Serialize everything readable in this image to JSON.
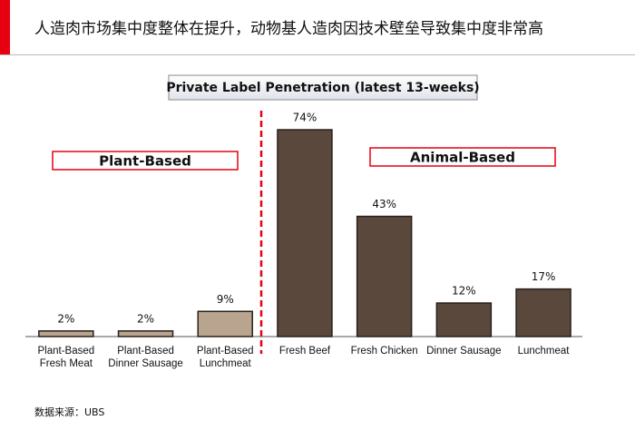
{
  "header": {
    "title": "人造肉市场集中度整体在提升，动物基人造肉因技术壁垒导致集中度非常高"
  },
  "chart_data": {
    "type": "bar",
    "title": "Private Label Penetration (latest 13-weeks)",
    "categories": [
      "Plant-Based Fresh Meat",
      "Plant-Based Dinner Sausage",
      "Plant-Based Lunchmeat",
      "Fresh Beef",
      "Fresh Chicken",
      "Dinner Sausage",
      "Lunchmeat"
    ],
    "values": [
      2,
      2,
      9,
      74,
      43,
      12,
      17
    ],
    "value_labels": [
      "2%",
      "2%",
      "9%",
      "74%",
      "43%",
      "12%",
      "17%"
    ],
    "colors": [
      "#b9a58f",
      "#b9a58f",
      "#b9a58f",
      "#5a483c",
      "#5a483c",
      "#5a483c",
      "#5a483c"
    ],
    "groups": [
      "Plant-Based",
      "Animal-Based"
    ]
  },
  "footer": {
    "source": "数据来源：UBS"
  }
}
